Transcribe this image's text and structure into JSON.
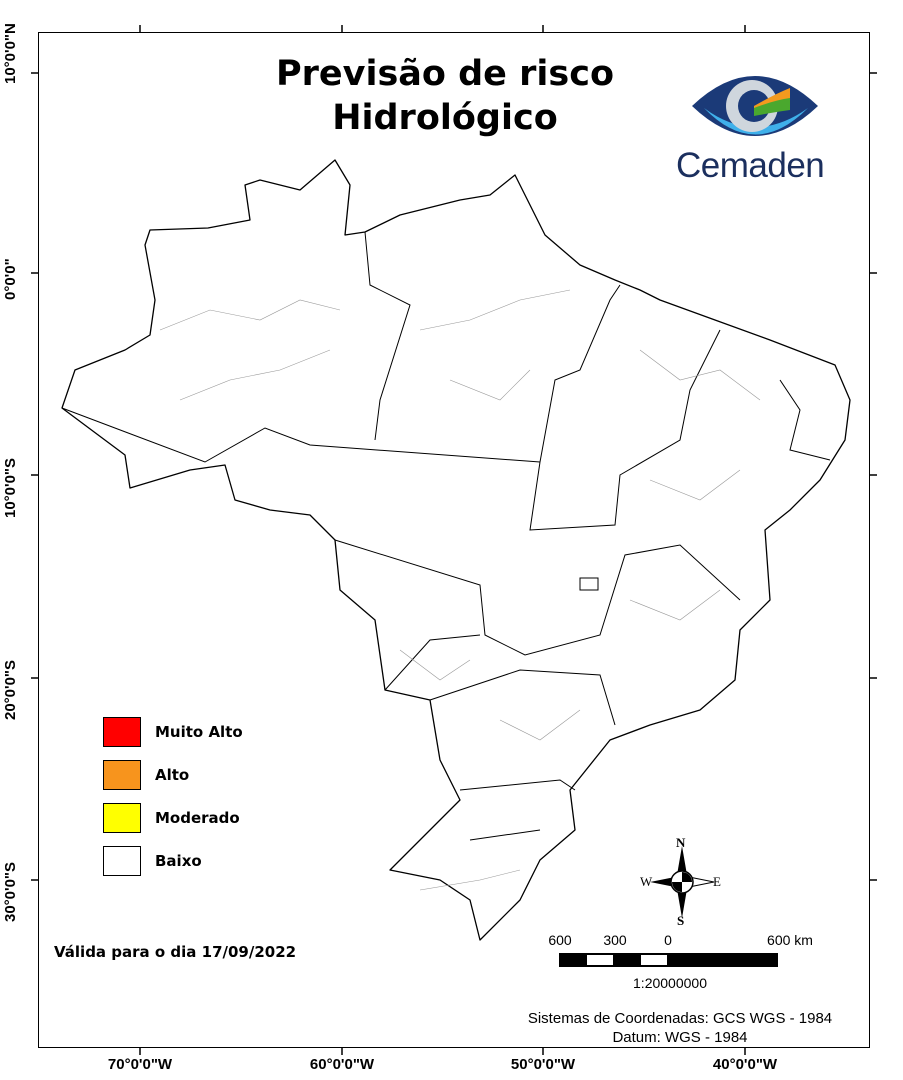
{
  "title": {
    "line1": "Previsão de risco",
    "line2": "Hidrológico"
  },
  "logo": {
    "text": "Cemaden",
    "colors": {
      "navy": "#1b2f5e",
      "blue": "#2a7fd4",
      "green": "#4aa82e",
      "orange": "#f39a1e"
    }
  },
  "axes": {
    "latitude_labels": [
      "10°0'0\"N",
      "0°0'0\"",
      "10°0'0\"S",
      "20°0'0\"S",
      "30°0'0\"S"
    ],
    "longitude_labels": [
      "70°0'0\"W",
      "60°0'0\"W",
      "50°0'0\"W",
      "40°0'0\"W"
    ]
  },
  "legend": [
    {
      "label": "Muito Alto",
      "color": "#ff0000"
    },
    {
      "label": "Alto",
      "color": "#f7941d"
    },
    {
      "label": "Moderado",
      "color": "#ffff00"
    },
    {
      "label": "Baixo",
      "color": "#ffffff"
    }
  ],
  "validity": "Válida para o dia 17/09/2022",
  "north_arrow": {
    "n": "N",
    "s": "S",
    "e": "E",
    "w": "W"
  },
  "scale_bar": {
    "labels": [
      "600",
      "300",
      "0",
      "600 km"
    ],
    "ratio": "1:20000000"
  },
  "coordinate_system": {
    "line1": "Sistemas de Coordenadas: GCS WGS - 1984",
    "line2": "Datum: WGS - 1984"
  }
}
